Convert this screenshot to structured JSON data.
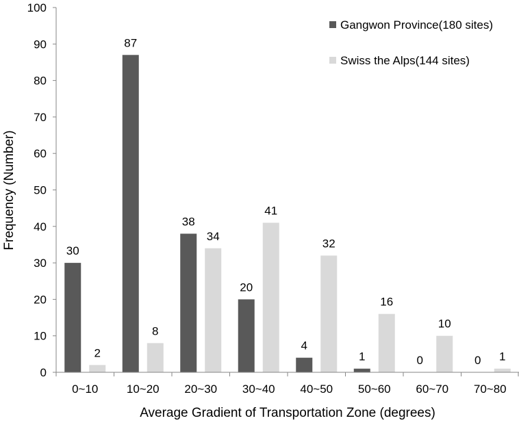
{
  "chart_data": {
    "type": "bar",
    "title": "",
    "xlabel": "Average Gradient of Transportation Zone (degrees)",
    "ylabel": "Frequency (Number)",
    "ylim": [
      0,
      100
    ],
    "yticks": [
      0,
      10,
      20,
      30,
      40,
      50,
      60,
      70,
      80,
      90,
      100
    ],
    "categories": [
      "0~10",
      "10~20",
      "20~30",
      "30~40",
      "40~50",
      "50~60",
      "60~70",
      "70~80"
    ],
    "series": [
      {
        "name": "Gangwon Province(180 sites)",
        "color": "#595959",
        "values": [
          30,
          87,
          38,
          20,
          4,
          1,
          0,
          0
        ]
      },
      {
        "name": "Swiss the Alps(144 sites)",
        "color": "#d9d9d9",
        "values": [
          2,
          8,
          34,
          41,
          32,
          16,
          10,
          1
        ]
      }
    ],
    "grid": false,
    "legend_position": "top-right",
    "data_labels": true
  }
}
